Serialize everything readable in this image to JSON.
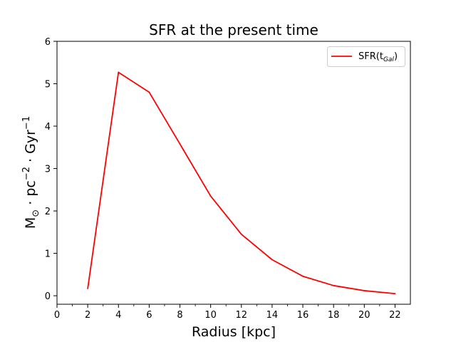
{
  "chart_data": {
    "type": "line",
    "title": "SFR at the present time",
    "xlabel": "Radius [kpc]",
    "ylabel": {
      "base1": "M",
      "sub1": "⊙",
      "base2": " · pc",
      "sup2": "−2",
      "base3": " · Gyr",
      "sup3": "−1"
    },
    "xlim": [
      0,
      23
    ],
    "ylim": [
      -0.2,
      6
    ],
    "x_major_ticks": [
      0,
      2,
      4,
      6,
      8,
      10,
      12,
      14,
      16,
      18,
      20,
      22
    ],
    "x_minor_ticks": [
      1,
      3,
      5,
      7,
      9,
      11,
      13,
      15,
      17,
      19,
      21
    ],
    "y_ticks": [
      0,
      1,
      2,
      3,
      4,
      5,
      6
    ],
    "grid": false,
    "legend_position": "top-right",
    "series": [
      {
        "name": "SFR(t",
        "name_sub": "Gal",
        "name_suffix": ")",
        "color": "#ff0000",
        "x": [
          2,
          4,
          6,
          8,
          10,
          12,
          14,
          16,
          18,
          20,
          22
        ],
        "y": [
          0.17,
          5.27,
          4.8,
          3.58,
          2.35,
          1.45,
          0.85,
          0.46,
          0.24,
          0.12,
          0.05
        ]
      }
    ]
  }
}
